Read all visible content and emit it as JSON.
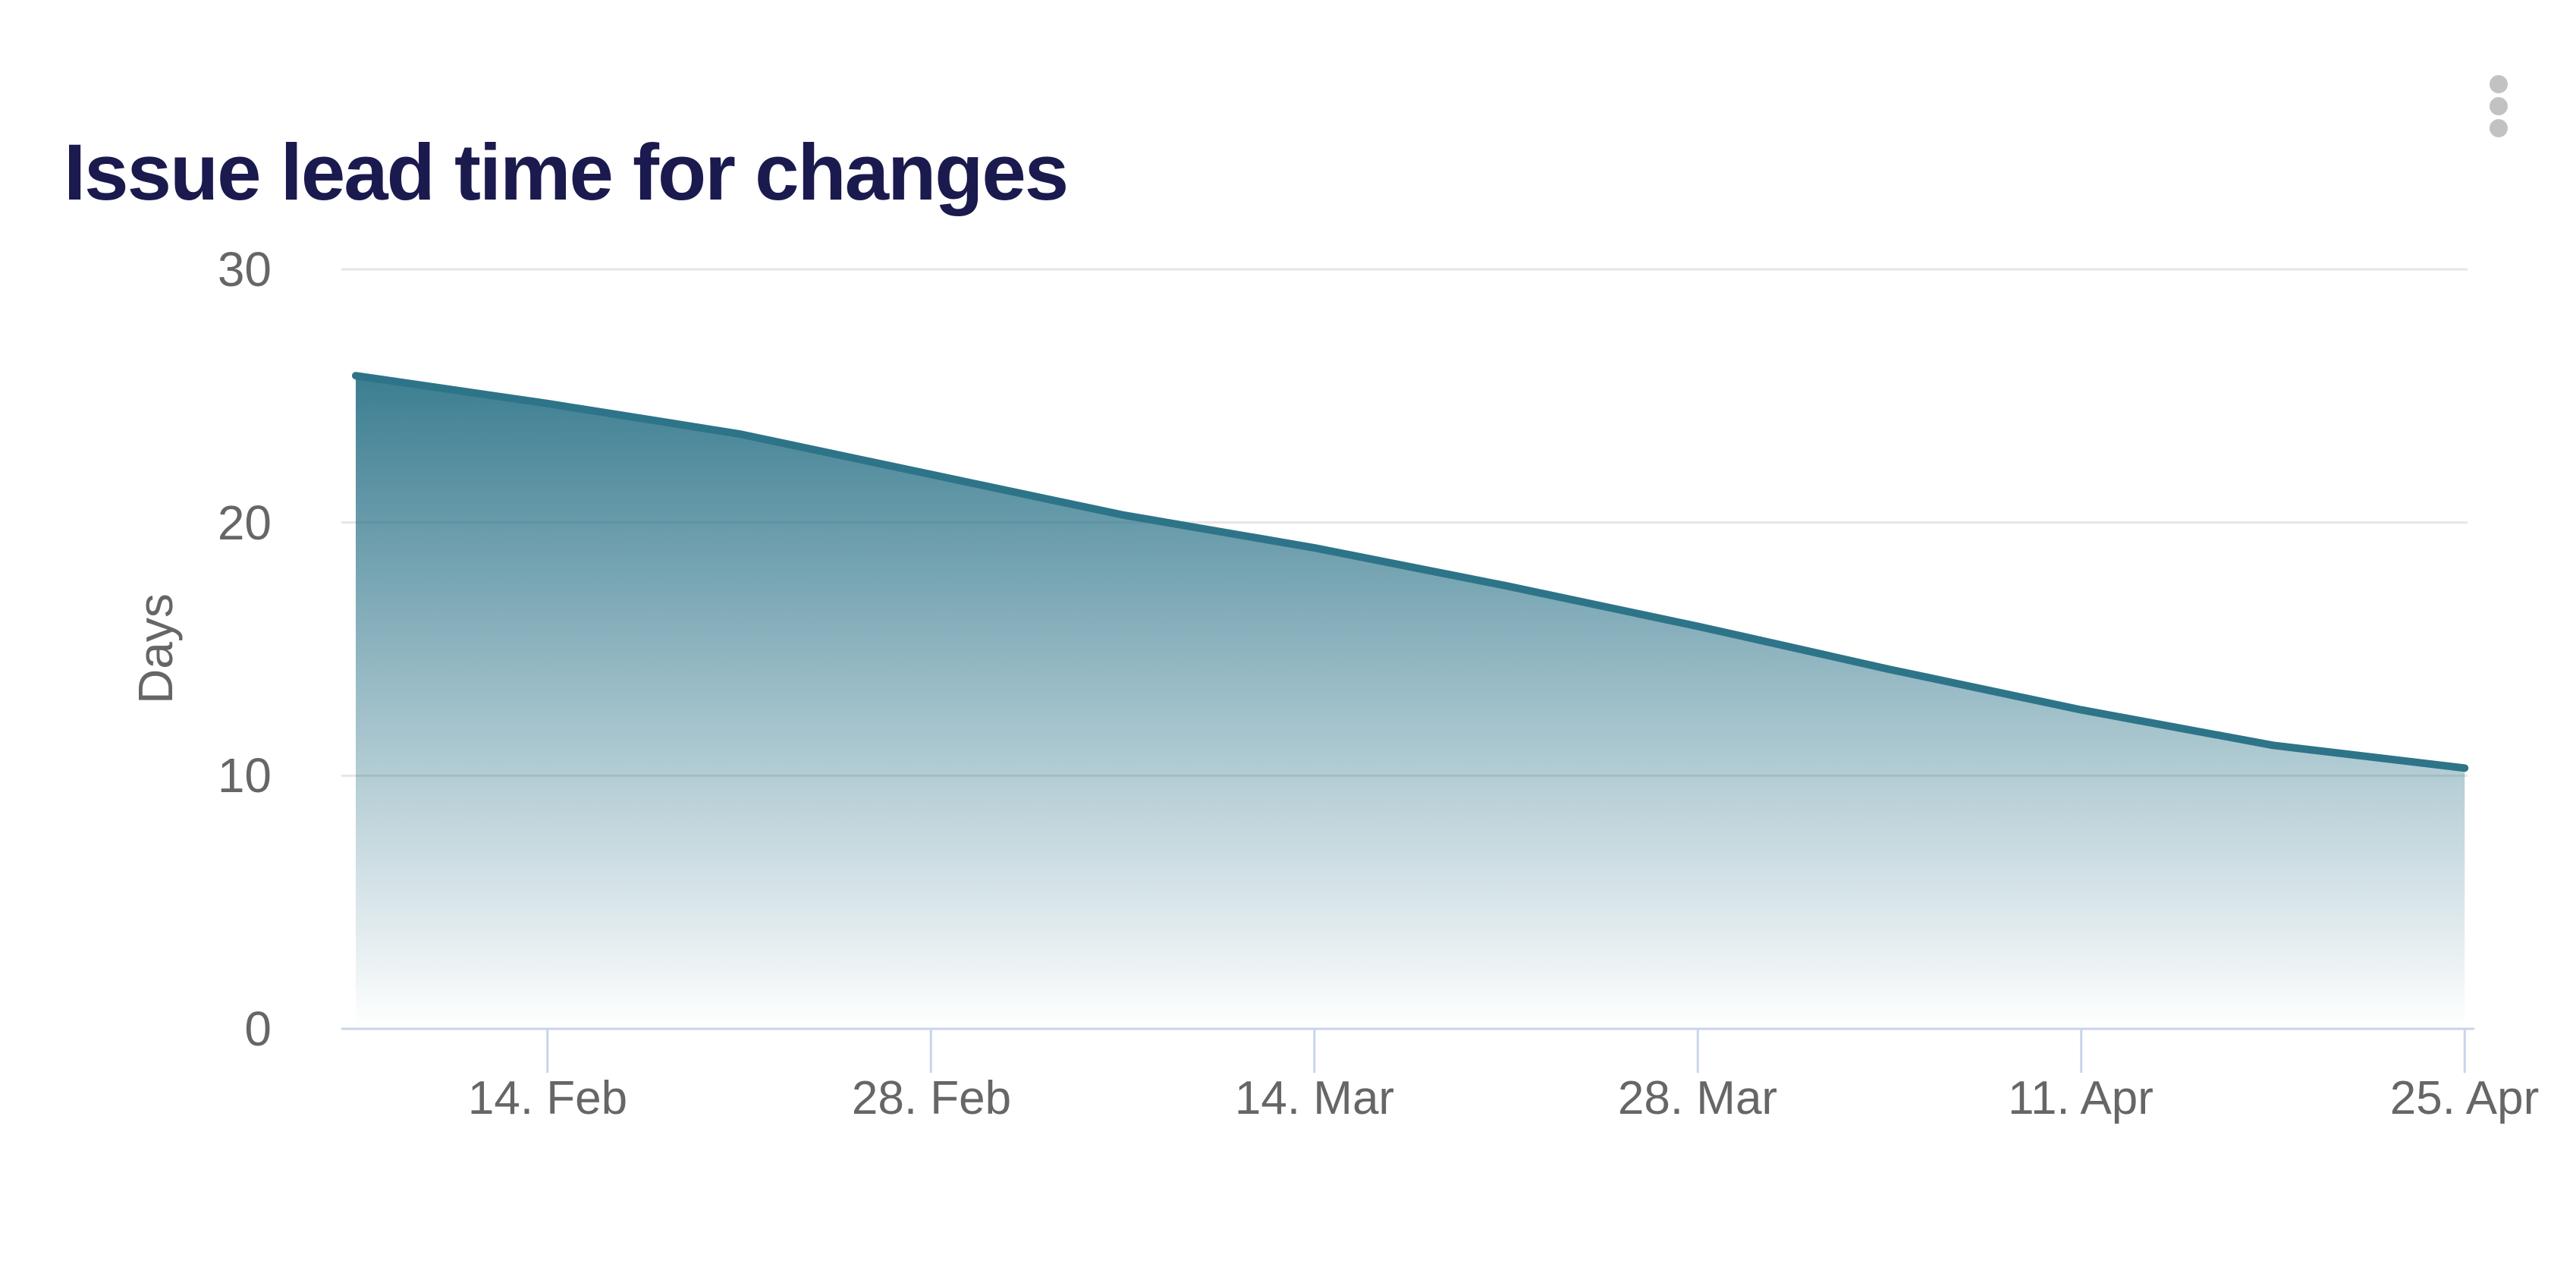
{
  "header": {
    "title": "Issue lead time for changes",
    "menu_icon": "kebab-vertical-icon"
  },
  "chart_data": {
    "type": "area",
    "title": "Issue lead time for changes",
    "xlabel": "",
    "ylabel": "Days",
    "ylim": [
      0,
      30
    ],
    "y_ticks": [
      0,
      10,
      20,
      30
    ],
    "y_tick_labels": [
      "0",
      "10",
      "20",
      "30"
    ],
    "x_tick_labels": [
      "14. Feb",
      "28. Feb",
      "14. Mar",
      "28. Mar",
      "11. Apr",
      "25. Apr"
    ],
    "grid": "horizontal-only",
    "legend": "none",
    "series": [
      {
        "name": "Issue lead time for changes",
        "unit": "days",
        "x": [
          "7. Feb",
          "14. Feb",
          "21. Feb",
          "28. Feb",
          "7. Mar",
          "14. Mar",
          "21. Mar",
          "28. Mar",
          "4. Apr",
          "11. Apr",
          "18. Apr",
          "25. Apr"
        ],
        "values": [
          25.8,
          24.7,
          23.5,
          21.9,
          20.3,
          19.0,
          17.5,
          15.9,
          14.2,
          12.6,
          11.2,
          10.3
        ]
      }
    ],
    "colors": {
      "line": "#2d7489",
      "area_base": "#2d7489",
      "gridline": "#e6e6e6",
      "axis_line": "#c9d4ea",
      "tick_label": "#666666",
      "title": "#1a1a4e",
      "kebab_dots": "#c2c2c2"
    },
    "area_top_opacity": 0.93,
    "area_bottom_opacity": 0
  }
}
